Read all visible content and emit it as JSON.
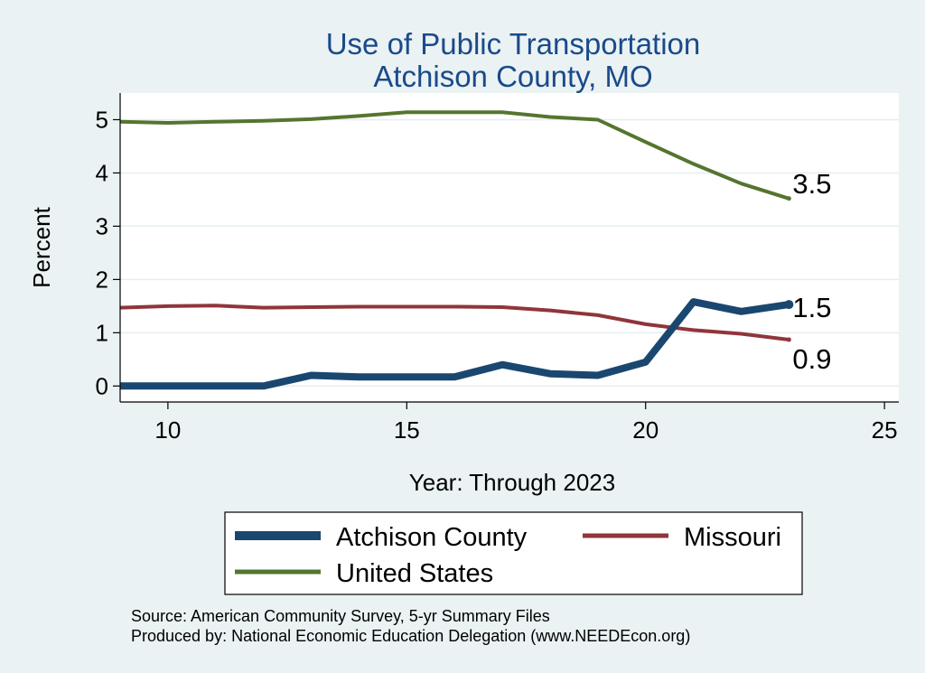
{
  "chart_data": {
    "type": "line",
    "title_lines": [
      "Use of Public Transportation",
      "Atchison County, MO"
    ],
    "xlabel": "Year: Through 2023",
    "ylabel": "Percent",
    "xlim": [
      9,
      25.3
    ],
    "ylim": [
      -0.3,
      5.5
    ],
    "xticks": [
      10,
      15,
      20,
      25
    ],
    "yticks": [
      0,
      1,
      2,
      3,
      4,
      5
    ],
    "grid": true,
    "legend_position": "bottom",
    "x": [
      9,
      10,
      11,
      12,
      13,
      14,
      15,
      16,
      17,
      18,
      19,
      20,
      21,
      22,
      23
    ],
    "series": [
      {
        "name": "Atchison County",
        "color": "#1a476f",
        "values": [
          0,
          0,
          0,
          0,
          0.2,
          0.17,
          0.17,
          0.17,
          0.4,
          0.23,
          0.2,
          0.45,
          1.58,
          1.4,
          1.53
        ],
        "end_label": "1.5"
      },
      {
        "name": "Missouri",
        "color": "#90353b",
        "values": [
          1.47,
          1.5,
          1.51,
          1.47,
          1.48,
          1.49,
          1.49,
          1.49,
          1.48,
          1.42,
          1.33,
          1.16,
          1.05,
          0.98,
          0.87
        ],
        "end_label": "0.9"
      },
      {
        "name": "United States",
        "color": "#55752f",
        "values": [
          4.96,
          4.94,
          4.96,
          4.98,
          5.01,
          5.07,
          5.14,
          5.14,
          5.14,
          5.05,
          5.0,
          4.58,
          4.17,
          3.8,
          3.52
        ],
        "end_label": "3.5"
      }
    ]
  },
  "notes": [
    "Source: American Community Survey, 5-yr Summary Files",
    "Produced by: National Economic Education Delegation (www.NEEDEcon.org)"
  ]
}
